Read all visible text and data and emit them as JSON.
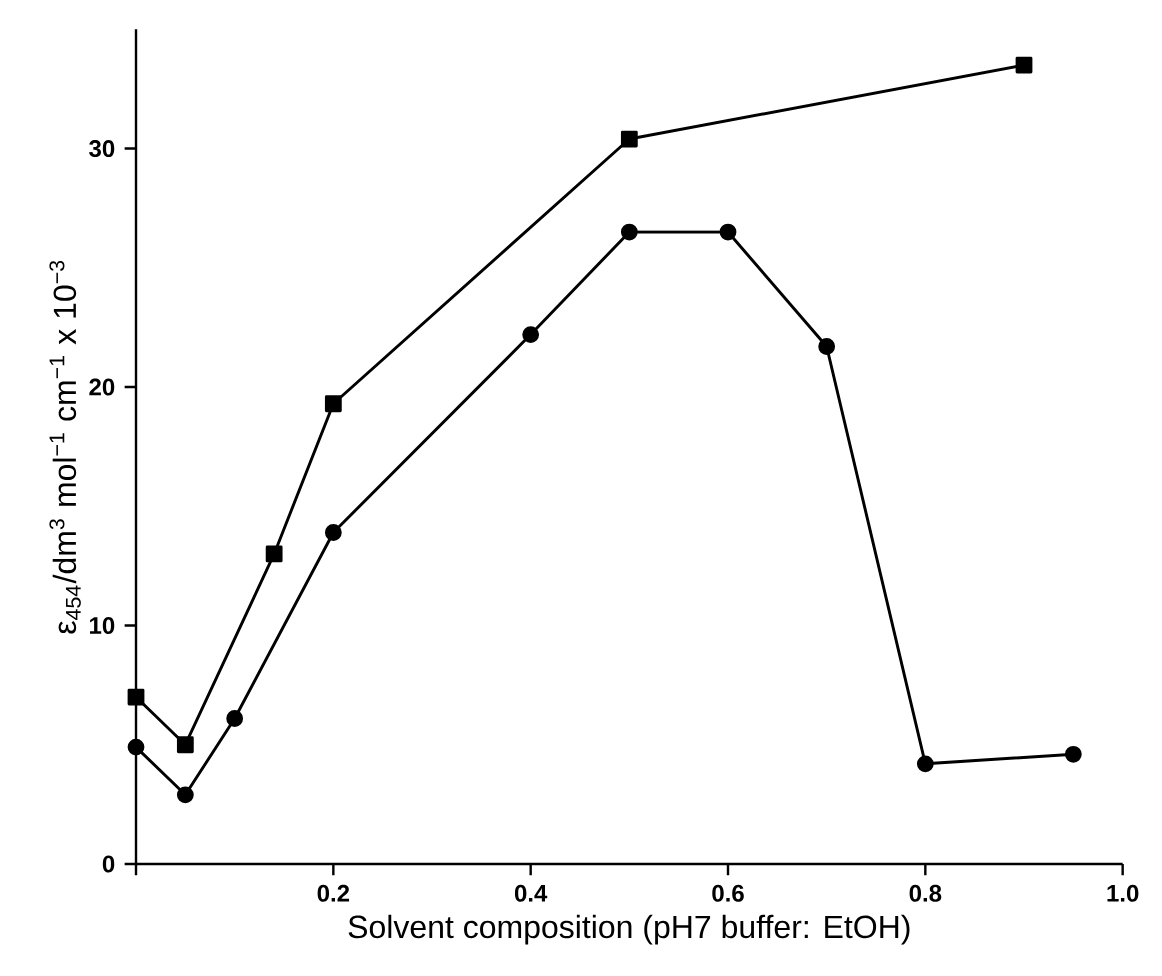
{
  "chart_data": {
    "type": "line",
    "xlabel": "Solvent composition (pH7 buffer: EtOH)",
    "ylabel": "ε$_{454}$/dm$^{3}$ mol$^{−1}$ cm$^{−1}$ x 10$^{−3}$",
    "xlim": [
      0,
      1
    ],
    "ylim": [
      0,
      35
    ],
    "xticks": [
      {
        "value": 0,
        "label": null
      },
      0.2,
      0.4,
      0.6,
      0.8,
      {
        "value": 1,
        "label": "1.0"
      }
    ],
    "yticks": [
      0,
      10,
      20,
      30
    ],
    "grid": false,
    "line_style": "solid",
    "series": [
      {
        "color": "#000000",
        "marker": "square",
        "x": [
          0.0,
          0.05,
          0.14,
          0.2,
          0.5,
          0.9
        ],
        "values": [
          7.0,
          5.0,
          13.0,
          19.3,
          30.4,
          33.5
        ]
      },
      {
        "color": "#000000",
        "marker": "circle",
        "x": [
          0.0,
          0.05,
          0.1,
          0.2,
          0.4,
          0.5,
          0.6,
          0.7,
          0.8,
          0.95
        ],
        "values": [
          4.9,
          2.9,
          6.1,
          13.9,
          22.2,
          26.5,
          26.5,
          21.7,
          4.2,
          4.6
        ]
      }
    ]
  }
}
